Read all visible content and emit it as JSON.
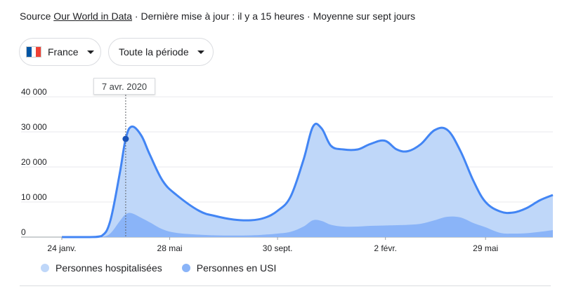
{
  "source": {
    "prefix": "Source",
    "link": "Our World in Data",
    "suffix": "· Dernière mise à jour : il y a 15 heures · Moyenne sur sept jours"
  },
  "filters": {
    "country": {
      "label": "France",
      "flag_colors": [
        "#0055a4",
        "#ffffff",
        "#ef4135"
      ]
    },
    "period": {
      "label": "Toute la période"
    }
  },
  "tooltip": {
    "date": "7 avr. 2020"
  },
  "colors": {
    "hospitalized_fill": "#bfd7f9",
    "icu_fill": "#8ab4f8",
    "line": "#4285f4",
    "marker": "#1a53b8"
  },
  "chart_data": {
    "type": "area",
    "x_unit": "date",
    "x": [
      "2020-01-24",
      "2020-02-25",
      "2020-03-10",
      "2020-03-20",
      "2020-03-31",
      "2020-04-07",
      "2020-04-14",
      "2020-04-25",
      "2020-05-05",
      "2020-05-20",
      "2020-06-05",
      "2020-07-01",
      "2020-07-20",
      "2020-08-10",
      "2020-08-30",
      "2020-09-15",
      "2020-09-30",
      "2020-10-15",
      "2020-10-30",
      "2020-11-10",
      "2020-11-20",
      "2020-12-01",
      "2020-12-15",
      "2021-01-01",
      "2021-01-15",
      "2021-02-01",
      "2021-02-15",
      "2021-02-28",
      "2021-03-15",
      "2021-03-31",
      "2021-04-15",
      "2021-04-30",
      "2021-05-15",
      "2021-05-29",
      "2021-06-15",
      "2021-06-30",
      "2021-07-15",
      "2021-07-31",
      "2021-08-15"
    ],
    "series": [
      {
        "name": "Personnes hospitalisées",
        "values": [
          0,
          0,
          300,
          4500,
          18000,
          28000,
          31500,
          29000,
          23500,
          16000,
          12000,
          7500,
          6000,
          5000,
          4800,
          5500,
          7500,
          11500,
          22000,
          31500,
          31000,
          26000,
          25000,
          25000,
          26500,
          27500,
          25000,
          24500,
          26500,
          30500,
          30500,
          24500,
          16000,
          10000,
          7300,
          7000,
          8200,
          10500,
          12000
        ]
      },
      {
        "name": "Personnes en USI",
        "values": [
          0,
          0,
          50,
          1000,
          4500,
          6500,
          6800,
          5500,
          4200,
          2200,
          1200,
          700,
          500,
          450,
          500,
          700,
          1000,
          1500,
          3000,
          4800,
          4600,
          3500,
          3000,
          3000,
          3200,
          3300,
          3400,
          3500,
          3800,
          4800,
          5800,
          5600,
          4000,
          2800,
          1200,
          1000,
          1100,
          1500,
          2000
        ]
      }
    ],
    "y_ticks": [
      0,
      10000,
      20000,
      30000,
      40000
    ],
    "y_tick_labels": [
      "0",
      "10 000",
      "20 000",
      "30 000",
      "40 000"
    ],
    "ylim": [
      0,
      40000
    ],
    "x_ticks": [
      "2020-01-24",
      "2020-05-28",
      "2020-09-30",
      "2021-02-02",
      "2021-05-29"
    ],
    "x_tick_labels": [
      "24 janv.",
      "28 mai",
      "30 sept.",
      "2 févr.",
      "29 mai"
    ],
    "highlight": {
      "date": "2020-04-07",
      "value": 28000
    },
    "grid": true,
    "legend_position": "bottom-left"
  }
}
